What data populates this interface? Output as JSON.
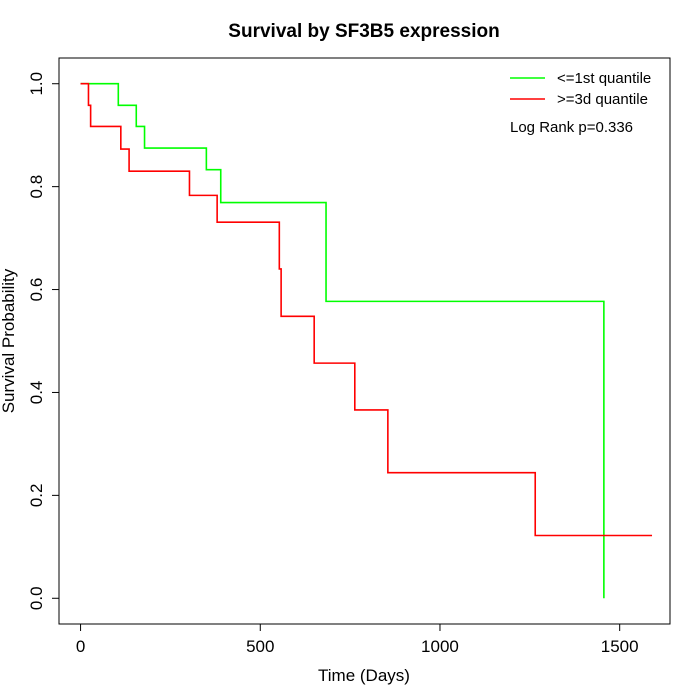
{
  "chart_data": {
    "type": "line",
    "title": "Survival by SF3B5 expression",
    "xlabel": "Time (Days)",
    "ylabel": "Survival Probability",
    "xlim": [
      -60,
      1640
    ],
    "ylim": [
      -0.05,
      1.05
    ],
    "xticks": [
      0,
      500,
      1000,
      1500
    ],
    "xtick_labels": [
      "0",
      "500",
      "1000",
      "1500"
    ],
    "yticks": [
      0.0,
      0.2,
      0.4,
      0.6,
      0.8,
      1.0
    ],
    "ytick_labels": [
      "0.0",
      "0.2",
      "0.4",
      "0.6",
      "0.8",
      "1.0"
    ],
    "legend_position": "top-right",
    "annotation": "Log Rank p=0.336",
    "series": [
      {
        "name": "<=1st quantile",
        "color": "#00ff00",
        "x": [
          0,
          105,
          105,
          155,
          155,
          178,
          178,
          350,
          350,
          390,
          390,
          683,
          683,
          1456,
          1456
        ],
        "y": [
          1.0,
          1.0,
          0.958,
          0.958,
          0.917,
          0.917,
          0.875,
          0.875,
          0.833,
          0.833,
          0.769,
          0.769,
          0.577,
          0.577,
          0.0
        ]
      },
      {
        "name": ">=3d quantile",
        "color": "#ff0000",
        "x": [
          0,
          22,
          22,
          28,
          28,
          112,
          112,
          135,
          135,
          303,
          303,
          380,
          380,
          553,
          553,
          558,
          558,
          650,
          650,
          763,
          763,
          855,
          855,
          1265,
          1265,
          1590
        ],
        "y": [
          1.0,
          1.0,
          0.958,
          0.958,
          0.917,
          0.917,
          0.873,
          0.873,
          0.83,
          0.83,
          0.783,
          0.783,
          0.731,
          0.731,
          0.64,
          0.64,
          0.548,
          0.548,
          0.457,
          0.457,
          0.366,
          0.366,
          0.244,
          0.244,
          0.122,
          0.122
        ]
      }
    ]
  }
}
